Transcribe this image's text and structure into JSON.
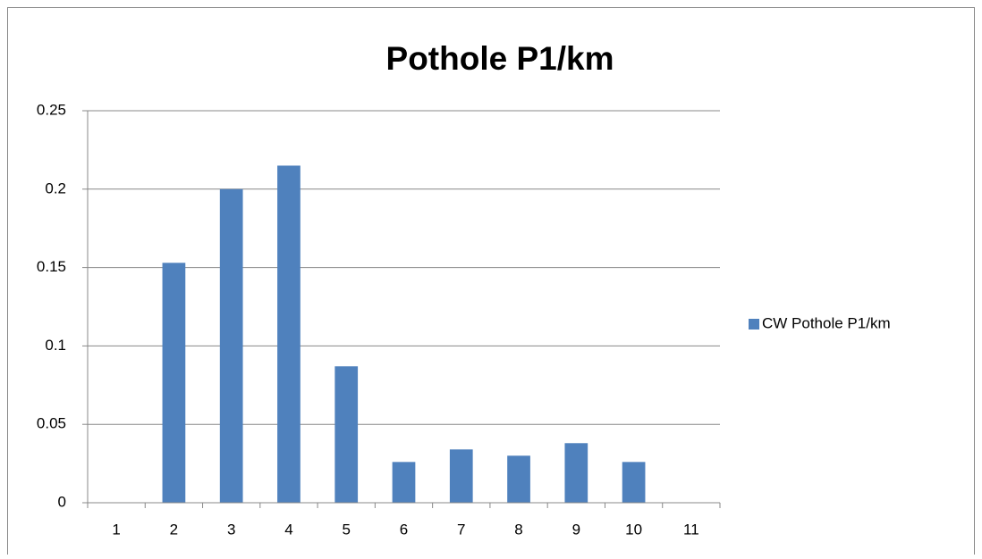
{
  "chart_data": {
    "type": "bar",
    "title": "Pothole P1/km",
    "categories": [
      "1",
      "2",
      "3",
      "4",
      "5",
      "6",
      "7",
      "8",
      "9",
      "10",
      "11"
    ],
    "series": [
      {
        "name": "CW Pothole P1/km",
        "color": "#4f81bd",
        "values": [
          null,
          0.153,
          0.2,
          0.215,
          0.087,
          0.026,
          0.034,
          0.03,
          0.038,
          0.026,
          null
        ]
      }
    ],
    "ylim": [
      0,
      0.25
    ],
    "yticks": [
      0,
      0.05,
      0.1,
      0.15,
      0.2,
      0.25
    ],
    "grid": true,
    "legend": "right"
  }
}
